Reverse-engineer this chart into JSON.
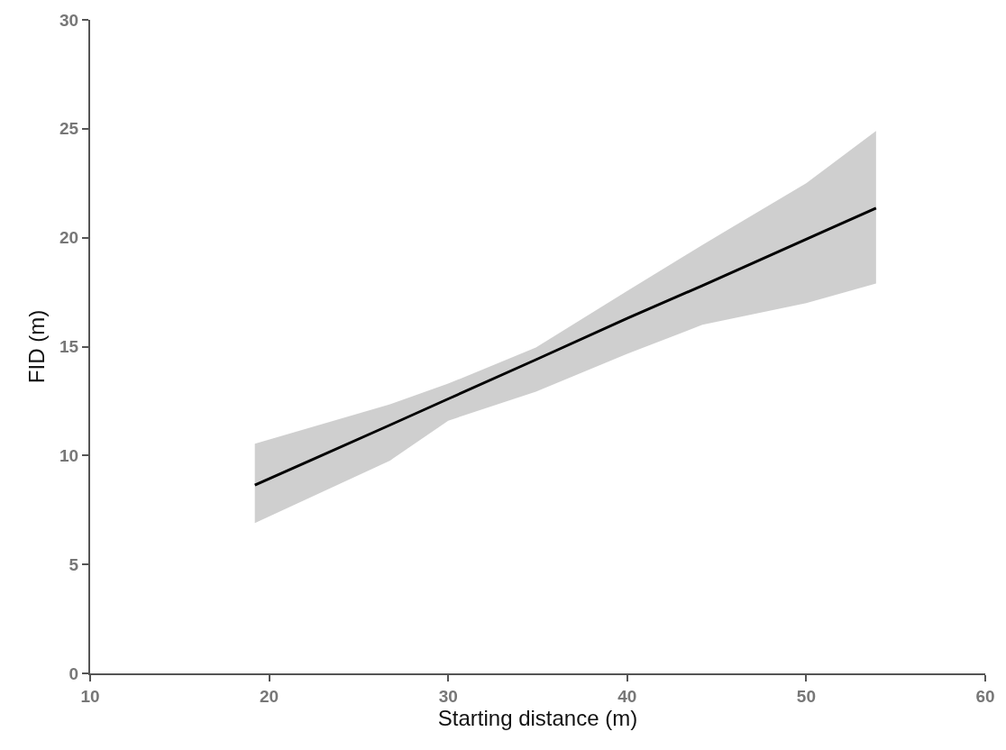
{
  "chart_data": {
    "type": "line",
    "xlabel": "Starting distance (m)",
    "ylabel": "FID (m)",
    "x": [
      19.2,
      26.75,
      30,
      34.9,
      40,
      44.2,
      50,
      53.9
    ],
    "series": [
      {
        "color": "#000000",
        "values": [
          8.64,
          11.4,
          12.6,
          14.4,
          16.3,
          17.8,
          19.93,
          21.36
        ],
        "lower": [
          6.9,
          9.77,
          11.6,
          12.93,
          14.67,
          16.0,
          17.0,
          17.9
        ],
        "upper": [
          10.54,
          12.35,
          13.3,
          14.96,
          17.55,
          19.67,
          22.5,
          24.9
        ]
      }
    ],
    "xlim": [
      10,
      60
    ],
    "xticks": [
      10,
      20,
      30,
      40,
      50,
      60
    ],
    "ylim": [
      0,
      30
    ],
    "yticks": [
      0,
      5,
      10,
      15,
      20,
      25,
      30
    ],
    "marker": "none",
    "line_style": "solid"
  }
}
